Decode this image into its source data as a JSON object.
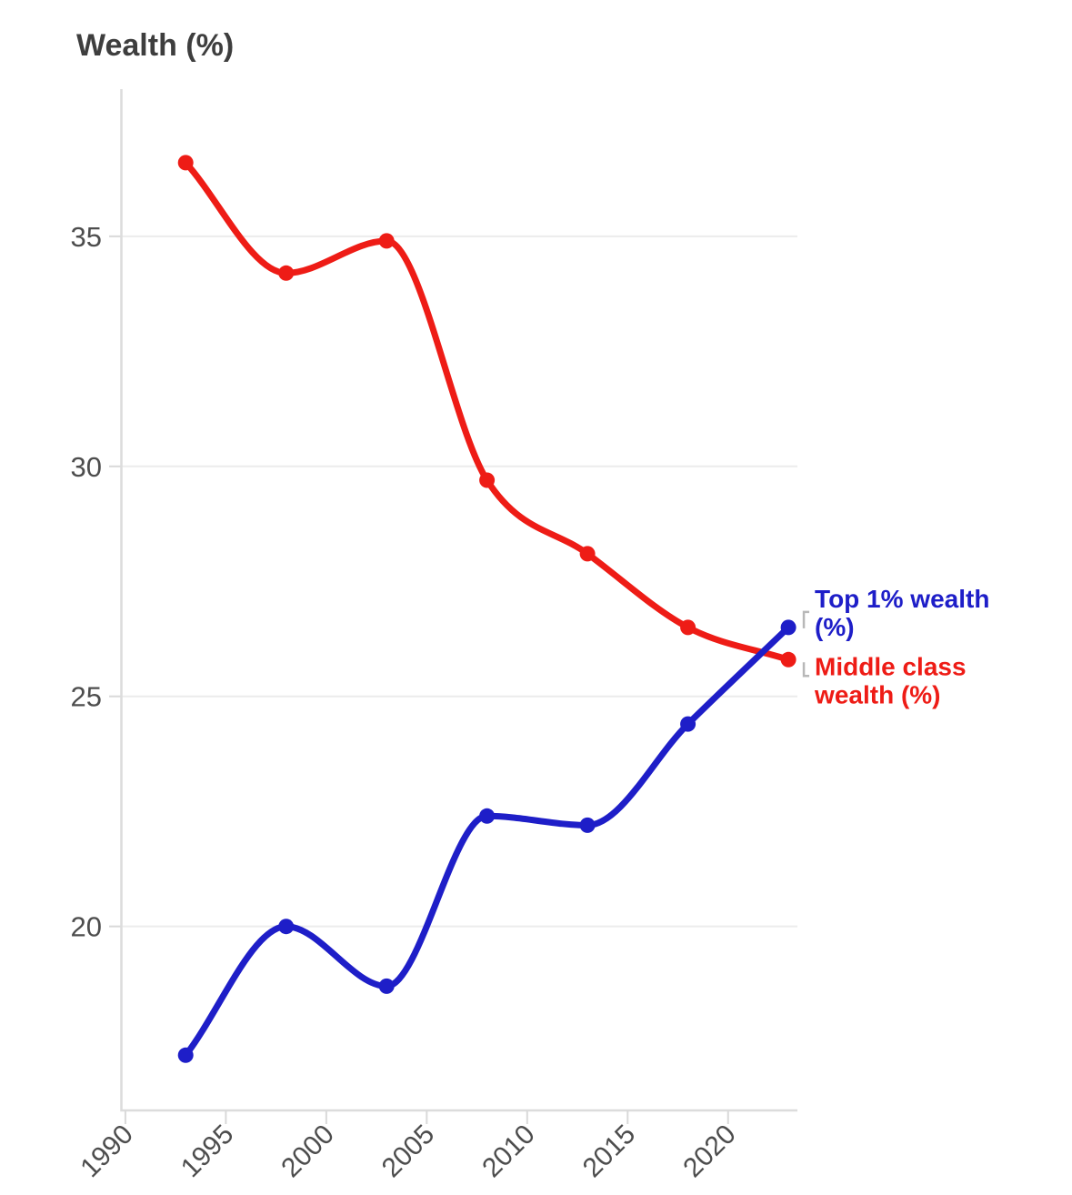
{
  "chart_data": {
    "type": "line",
    "title": "Wealth (%)",
    "xlabel": "",
    "ylabel": "Wealth (%)",
    "x": [
      1993,
      1998,
      2003,
      2008,
      2013,
      2018,
      2023
    ],
    "series": [
      {
        "name": "Top 1% wealth (%)",
        "legend_lines": [
          "Top 1% wealth",
          "(%)"
        ],
        "color": "#1e1ec8",
        "values": [
          17.2,
          20.0,
          18.7,
          22.4,
          22.2,
          24.4,
          26.5
        ]
      },
      {
        "name": "Middle class wealth (%)",
        "legend_lines": [
          "Middle class",
          "wealth (%)"
        ],
        "color": "#ee1c16",
        "values": [
          36.6,
          34.2,
          34.9,
          29.7,
          28.1,
          26.5,
          25.8
        ]
      }
    ],
    "x_ticks": [
      "1990",
      "1995",
      "2000",
      "2005",
      "2010",
      "2015",
      "2020"
    ],
    "y_ticks": [
      "20",
      "25",
      "30",
      "35"
    ],
    "xlim": [
      1989.8,
      2023.45
    ],
    "ylim": [
      16.0,
      38.2
    ],
    "curve": "monotone",
    "grid": "horizontal-only",
    "x_tick_rotation": -45,
    "legend_position": "right-of-line-ends"
  },
  "colors": {
    "background": "#ffffff",
    "grid": "#ececec",
    "axis": "#dcdcdc",
    "tick": "#d9d9d9",
    "tick_text": "#4d4d4d",
    "title_text": "#3e3e3e",
    "connector": "#b8b8b8"
  }
}
